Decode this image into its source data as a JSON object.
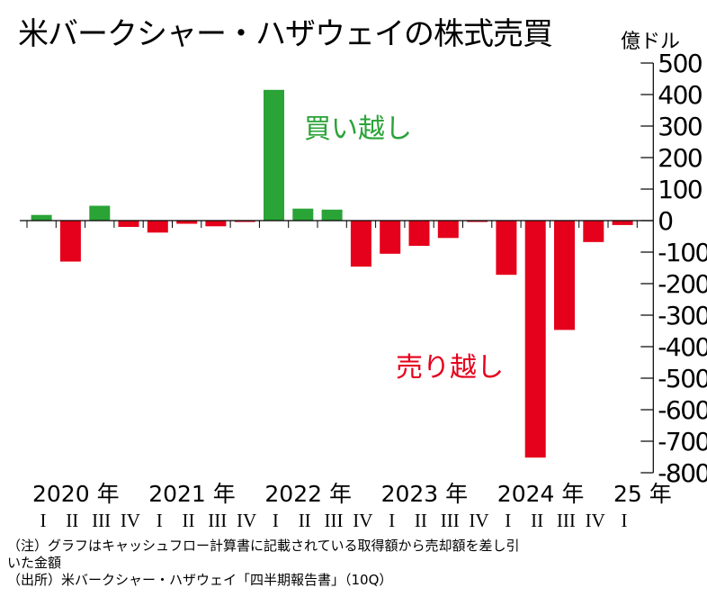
{
  "title": "米バークシャー・ハザウェイの株式売買",
  "unit_label": "億ドル",
  "annotations": {
    "buy": "買い越し",
    "sell": "売り越し"
  },
  "notes": [
    "（注）グラフはキャッシュフロー計算書に記載されている取得額から売却額を差し引",
    "いた金額",
    "（出所）米バークシャー・ハザウェイ「四半期報告書」（10Q）"
  ],
  "colors": {
    "positive": "#2aa337",
    "negative": "#e5001b"
  },
  "chart_data": {
    "type": "bar",
    "ylim": [
      -800,
      500
    ],
    "yticks": [
      500,
      400,
      300,
      200,
      100,
      0,
      -100,
      -200,
      -300,
      -400,
      -500,
      -600,
      -700,
      -800
    ],
    "quarter_labels": [
      "I",
      "II",
      "III",
      "IV",
      "I",
      "II",
      "III",
      "IV",
      "I",
      "II",
      "III",
      "IV",
      "I",
      "II",
      "III",
      "IV",
      "I",
      "II",
      "III",
      "IV",
      "I"
    ],
    "year_labels": [
      {
        "label": "2020 年",
        "start_index": 0
      },
      {
        "label": "2021 年",
        "start_index": 4
      },
      {
        "label": "2022 年",
        "start_index": 8
      },
      {
        "label": "2023 年",
        "start_index": 12
      },
      {
        "label": "2024 年",
        "start_index": 16
      },
      {
        "label": "25 年",
        "start_index": 20
      }
    ],
    "values": [
      18,
      -130,
      47,
      -20,
      -38,
      -10,
      -18,
      -4,
      415,
      38,
      35,
      -146,
      -105,
      -80,
      -55,
      -3,
      -172,
      -752,
      -347,
      -68,
      -14
    ],
    "grid": false,
    "legend": "none"
  }
}
